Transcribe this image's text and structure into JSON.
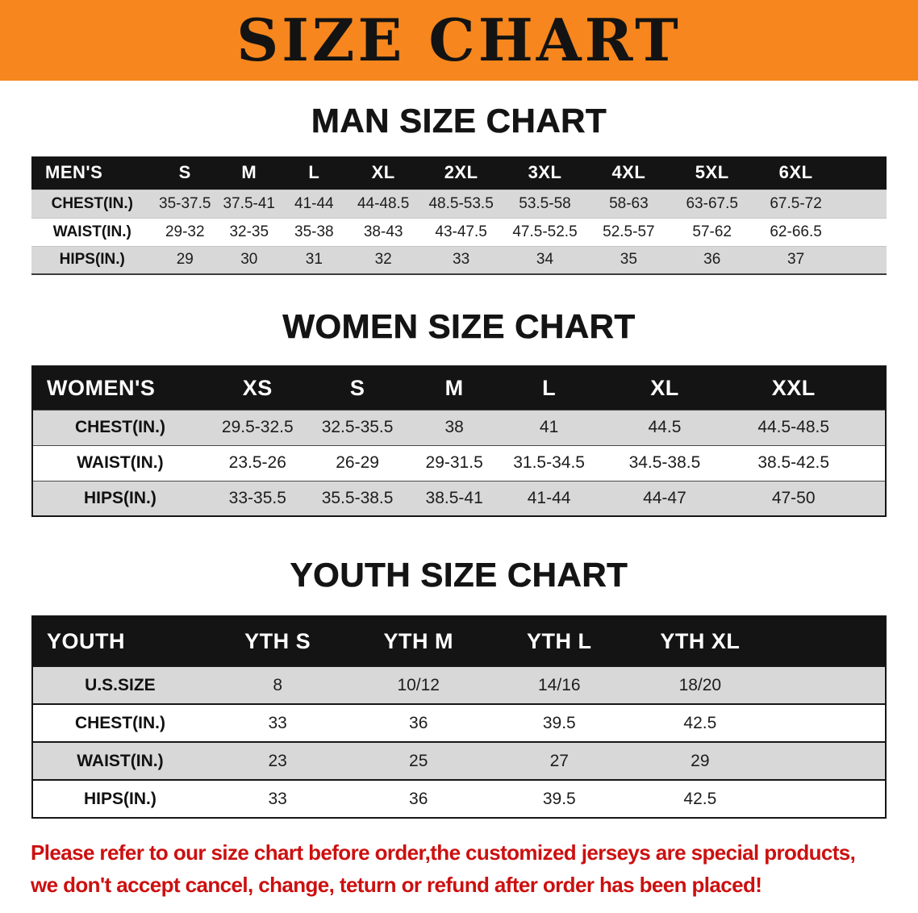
{
  "banner": {
    "title": "SIZE CHART"
  },
  "sections": [
    {
      "key": "men",
      "heading": "MAN SIZE CHART",
      "table": {
        "title": "MEN'S",
        "columns": [
          "S",
          "M",
          "L",
          "XL",
          "2XL",
          "3XL",
          "4XL",
          "5XL",
          "6XL"
        ],
        "rows": [
          {
            "label": "CHEST(IN.)",
            "values": [
              "35-37.5",
              "37.5-41",
              "41-44",
              "44-48.5",
              "48.5-53.5",
              "53.5-58",
              "58-63",
              "63-67.5",
              "67.5-72"
            ]
          },
          {
            "label": "WAIST(IN.)",
            "values": [
              "29-32",
              "32-35",
              "35-38",
              "38-43",
              "43-47.5",
              "47.5-52.5",
              "52.5-57",
              "57-62",
              "62-66.5"
            ]
          },
          {
            "label": "HIPS(IN.)",
            "values": [
              "29",
              "30",
              "31",
              "32",
              "33",
              "34",
              "35",
              "36",
              "37"
            ]
          }
        ]
      }
    },
    {
      "key": "women",
      "heading": "WOMEN SIZE CHART",
      "table": {
        "title": "WOMEN'S",
        "columns": [
          "XS",
          "S",
          "M",
          "L",
          "XL",
          "XXL"
        ],
        "rows": [
          {
            "label": "CHEST(IN.)",
            "values": [
              "29.5-32.5",
              "32.5-35.5",
              "38",
              "41",
              "44.5",
              "44.5-48.5"
            ]
          },
          {
            "label": "WAIST(IN.)",
            "values": [
              "23.5-26",
              "26-29",
              "29-31.5",
              "31.5-34.5",
              "34.5-38.5",
              "38.5-42.5"
            ]
          },
          {
            "label": "HIPS(IN.)",
            "values": [
              "33-35.5",
              "35.5-38.5",
              "38.5-41",
              "41-44",
              "44-47",
              "47-50"
            ]
          }
        ]
      }
    },
    {
      "key": "youth",
      "heading": "YOUTH SIZE CHART",
      "table": {
        "title": "YOUTH",
        "columns": [
          "YTH S",
          "YTH M",
          "YTH L",
          "YTH XL"
        ],
        "rows": [
          {
            "label": "U.S.SIZE",
            "values": [
              "8",
              "10/12",
              "14/16",
              "18/20"
            ]
          },
          {
            "label": "CHEST(IN.)",
            "values": [
              "33",
              "36",
              "39.5",
              "42.5"
            ]
          },
          {
            "label": "WAIST(IN.)",
            "values": [
              "23",
              "25",
              "27",
              "29"
            ]
          },
          {
            "label": "HIPS(IN.)",
            "values": [
              "33",
              "36",
              "39.5",
              "42.5"
            ]
          }
        ]
      }
    }
  ],
  "disclaimer": {
    "line1": "Please refer to our size chart before order,the customized jerseys are special products,",
    "line2": "we don't accept cancel, change, teturn or refund after order has been placed!"
  },
  "colors": {
    "banner_orange": "#f6861d",
    "header_black": "#141414",
    "row_shaded": "#d8d8d8",
    "disclaimer_red": "#cc1010"
  }
}
